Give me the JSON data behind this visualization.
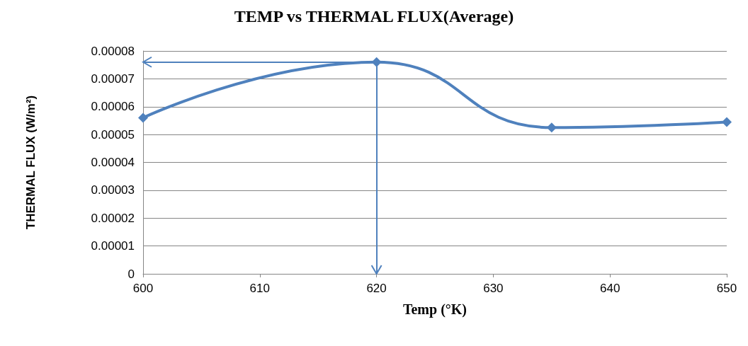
{
  "chart_data": {
    "type": "line",
    "title": "TEMP vs THERMAL FLUX(Average)",
    "xlabel": "Temp (°K)",
    "ylabel": "THERMAL FLUX (W/m²)",
    "x": [
      600,
      620,
      635,
      650
    ],
    "series": [
      {
        "color": "#4f81bd",
        "values": [
          5.6e-05,
          7.6e-05,
          5.25e-05,
          5.45e-05
        ]
      }
    ],
    "xlim": [
      600,
      650
    ],
    "xticks": [
      600,
      610,
      620,
      630,
      640,
      650
    ],
    "ylim": [
      0,
      8e-05
    ],
    "yticks": [
      0,
      {
        "value": 1e-05,
        "label": "0.00001"
      },
      {
        "value": 2e-05,
        "label": "0.00002"
      },
      {
        "value": 3e-05,
        "label": "0.00003"
      },
      {
        "value": 4e-05,
        "label": "0.00004"
      },
      {
        "value": 5e-05,
        "label": "0.00005"
      },
      {
        "value": 6e-05,
        "label": "0.00006"
      },
      {
        "value": 7e-05,
        "label": "0.00007"
      },
      {
        "value": 8e-05,
        "label": "0.00008"
      }
    ],
    "ref_lines": [
      {
        "axis": "x",
        "value": 620,
        "color": "#4f81bd"
      },
      {
        "axis": "y",
        "value": 7.6e-05,
        "color": "#4f81bd"
      }
    ],
    "grid": "y",
    "marker": "diamond"
  }
}
